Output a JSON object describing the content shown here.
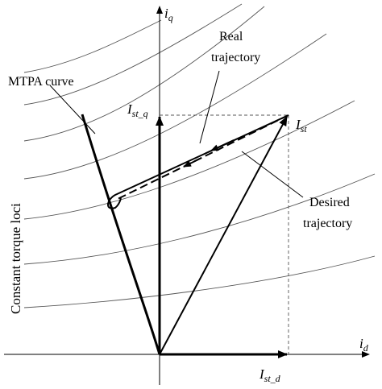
{
  "labels": {
    "iq": "i",
    "iq_sub": "q",
    "id": "i",
    "id_sub": "d",
    "ist": "I",
    "ist_sub": "st",
    "ist_q": "I",
    "ist_q_sub": "st_q",
    "ist_d": "I",
    "ist_d_sub": "st_d",
    "mtpa": "MTPA curve",
    "real_line1": "Real",
    "real_line2": "trajectory",
    "desired_line1": "Desired",
    "desired_line2": "trajectory",
    "torque_loci": "Constant torque loci"
  },
  "colors": {
    "stroke": "#000000",
    "grid": "#555555"
  }
}
